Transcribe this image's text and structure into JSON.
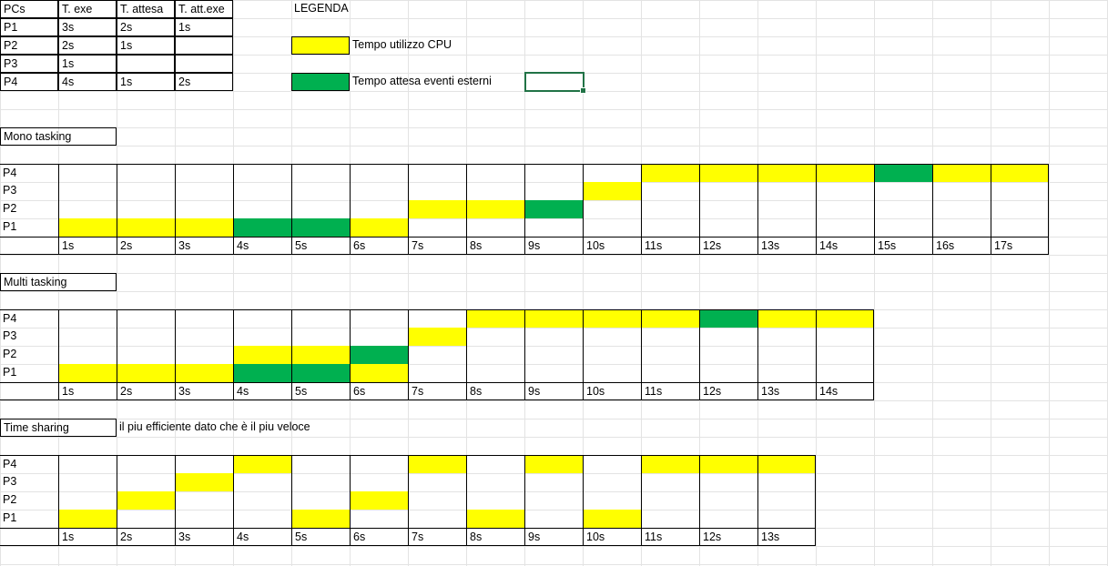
{
  "colors": {
    "cpu": "#ffff00",
    "wait": "#00b050",
    "grid": "#e3e3e3",
    "selection": "#217346"
  },
  "process_table": {
    "headers": [
      "PCs",
      "T. exe",
      "T. attesa",
      "T. att.exe"
    ],
    "rows": [
      [
        "P1",
        "3s",
        "2s",
        "1s"
      ],
      [
        "P2",
        "2s",
        "1s",
        ""
      ],
      [
        "P3",
        "1s",
        "",
        ""
      ],
      [
        "P4",
        "4s",
        "1s",
        "2s"
      ]
    ]
  },
  "legend": {
    "title": "LEGENDA",
    "cpu_label": "Tempo utilizzo CPU",
    "wait_label": "Tempo attesa eventi esterni"
  },
  "charts": [
    {
      "title": "Mono tasking",
      "note": "",
      "rows": [
        "P4",
        "P3",
        "P2",
        "P1"
      ],
      "time_labels": [
        "1s",
        "2s",
        "3s",
        "4s",
        "5s",
        "6s",
        "7s",
        "8s",
        "9s",
        "10s",
        "11s",
        "12s",
        "13s",
        "14s",
        "15s",
        "16s",
        "17s"
      ],
      "timeline": {
        "P4": [
          "",
          "",
          "",
          "",
          "",
          "",
          "",
          "",
          "",
          "",
          "C",
          "C",
          "C",
          "C",
          "W",
          "C",
          "C"
        ],
        "P3": [
          "",
          "",
          "",
          "",
          "",
          "",
          "",
          "",
          "",
          "C",
          "",
          "",
          "",
          "",
          "",
          "",
          ""
        ],
        "P2": [
          "",
          "",
          "",
          "",
          "",
          "",
          "C",
          "C",
          "W",
          "",
          "",
          "",
          "",
          "",
          "",
          "",
          ""
        ],
        "P1": [
          "C",
          "C",
          "C",
          "W",
          "W",
          "C",
          "",
          "",
          "",
          "",
          "",
          "",
          "",
          "",
          "",
          "",
          ""
        ]
      }
    },
    {
      "title": "Multi tasking",
      "note": "",
      "rows": [
        "P4",
        "P3",
        "P2",
        "P1"
      ],
      "time_labels": [
        "1s",
        "2s",
        "3s",
        "4s",
        "5s",
        "6s",
        "7s",
        "8s",
        "9s",
        "10s",
        "11s",
        "12s",
        "13s",
        "14s"
      ],
      "timeline": {
        "P4": [
          "",
          "",
          "",
          "",
          "",
          "",
          "",
          "C",
          "C",
          "C",
          "C",
          "W",
          "C",
          "C"
        ],
        "P3": [
          "",
          "",
          "",
          "",
          "",
          "",
          "C",
          "",
          "",
          "",
          "",
          "",
          "",
          ""
        ],
        "P2": [
          "",
          "",
          "",
          "C",
          "C",
          "W",
          "",
          "",
          "",
          "",
          "",
          "",
          "",
          ""
        ],
        "P1": [
          "C",
          "C",
          "C",
          "W",
          "W",
          "C",
          "",
          "",
          "",
          "",
          "",
          "",
          "",
          ""
        ]
      }
    },
    {
      "title": "Time sharing",
      "note": "il piu efficiente dato che è il piu veloce",
      "rows": [
        "P4",
        "P3",
        "P2",
        "P1"
      ],
      "time_labels": [
        "1s",
        "2s",
        "3s",
        "4s",
        "5s",
        "6s",
        "7s",
        "8s",
        "9s",
        "10s",
        "11s",
        "12s",
        "13s"
      ],
      "timeline": {
        "P4": [
          "",
          "",
          "",
          "C",
          "",
          "",
          "C",
          "",
          "C",
          "",
          "C",
          "C",
          "C"
        ],
        "P3": [
          "",
          "",
          "C",
          "",
          "",
          "",
          "",
          "",
          "",
          "",
          "",
          "",
          ""
        ],
        "P2": [
          "",
          "C",
          "",
          "",
          "",
          "C",
          "",
          "",
          "",
          "",
          "",
          "",
          ""
        ],
        "P1": [
          "C",
          "",
          "",
          "",
          "C",
          "",
          "",
          "C",
          "",
          "C",
          "",
          "",
          ""
        ]
      }
    }
  ]
}
